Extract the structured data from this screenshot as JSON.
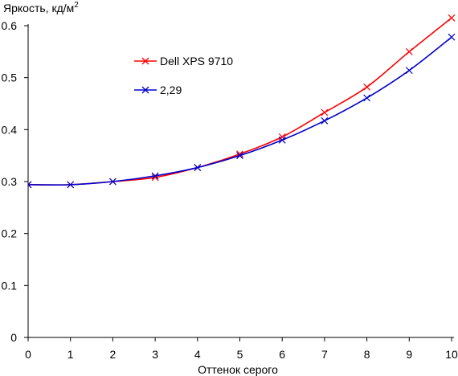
{
  "chart_data": {
    "type": "line",
    "ylabel": "Яркость, кд/м",
    "ylabel_sup": "2",
    "xlabel": "Оттенок серого",
    "xlim": [
      0,
      10
    ],
    "ylim": [
      0,
      0.6
    ],
    "xticks": [
      "0",
      "1",
      "2",
      "3",
      "4",
      "5",
      "6",
      "7",
      "8",
      "9",
      "10"
    ],
    "yticks": [
      "0",
      "0.1",
      "0.2",
      "0.3",
      "0.4",
      "0.5",
      "0.6"
    ],
    "grid": false,
    "legend_position": "top-center",
    "series": [
      {
        "name": "Dell XPS 9710",
        "color": "#ff0000",
        "marker": "x",
        "x": [
          0,
          1,
          2,
          3,
          4,
          5,
          6,
          7,
          8,
          9,
          10
        ],
        "y": [
          0.294,
          0.294,
          0.3,
          0.308,
          0.327,
          0.353,
          0.386,
          0.433,
          0.482,
          0.55,
          0.615
        ]
      },
      {
        "name": "2,29",
        "color": "#0000cc",
        "marker": "x",
        "x": [
          0,
          1,
          2,
          3,
          4,
          5,
          6,
          7,
          8,
          9,
          10
        ],
        "y": [
          0.294,
          0.294,
          0.3,
          0.311,
          0.327,
          0.35,
          0.38,
          0.417,
          0.461,
          0.514,
          0.578
        ]
      }
    ]
  }
}
